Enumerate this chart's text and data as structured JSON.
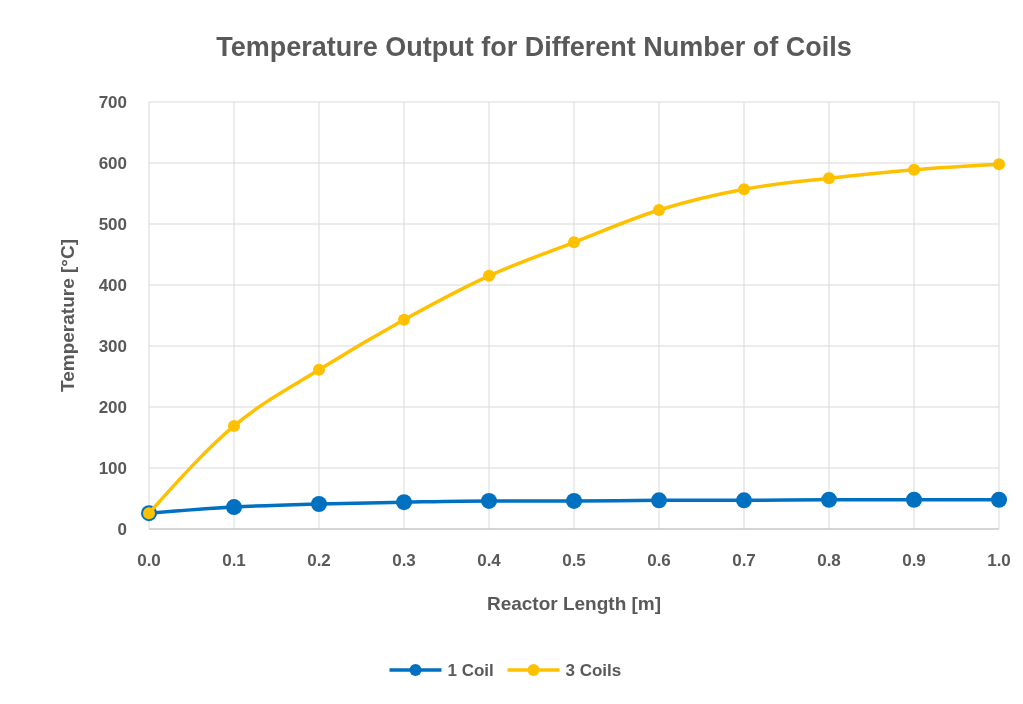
{
  "chart_data": {
    "type": "line",
    "title": "Temperature Output for Different Number of Coils",
    "xlabel": "Reactor Length [m]",
    "ylabel": "Temperature [°C]",
    "x": [
      0,
      0.1,
      0.2,
      0.3,
      0.4,
      0.5,
      0.6,
      0.7,
      0.8,
      0.9,
      1.0
    ],
    "series": [
      {
        "name": "1 Coil",
        "color": "#0070c0",
        "values": [
          26,
          36,
          41,
          44,
          46,
          46,
          47,
          47,
          48,
          48,
          48
        ]
      },
      {
        "name": "3 Coils",
        "color": "#ffc000",
        "values": [
          26,
          169,
          261,
          343,
          415,
          470,
          523,
          557,
          575,
          589,
          598
        ]
      }
    ],
    "xlim": [
      0,
      1
    ],
    "xticks": [
      {
        "value": 0,
        "label": "0.0"
      },
      {
        "value": 0.1,
        "label": "0.1"
      },
      {
        "value": 0.2,
        "label": "0.2"
      },
      {
        "value": 0.3,
        "label": "0.3"
      },
      {
        "value": 0.4,
        "label": "0.4"
      },
      {
        "value": 0.5,
        "label": "0.5"
      },
      {
        "value": 0.6,
        "label": "0.6"
      },
      {
        "value": 0.7,
        "label": "0.7"
      },
      {
        "value": 0.8,
        "label": "0.8"
      },
      {
        "value": 0.9,
        "label": "0.9"
      },
      {
        "value": 1,
        "label": "1.0"
      }
    ],
    "ylim": [
      0,
      700
    ],
    "yticks": [
      0,
      100,
      200,
      300,
      400,
      500,
      600,
      700
    ],
    "grid": true,
    "legend": "bottom",
    "marker": "circle",
    "line_style": "solid"
  }
}
